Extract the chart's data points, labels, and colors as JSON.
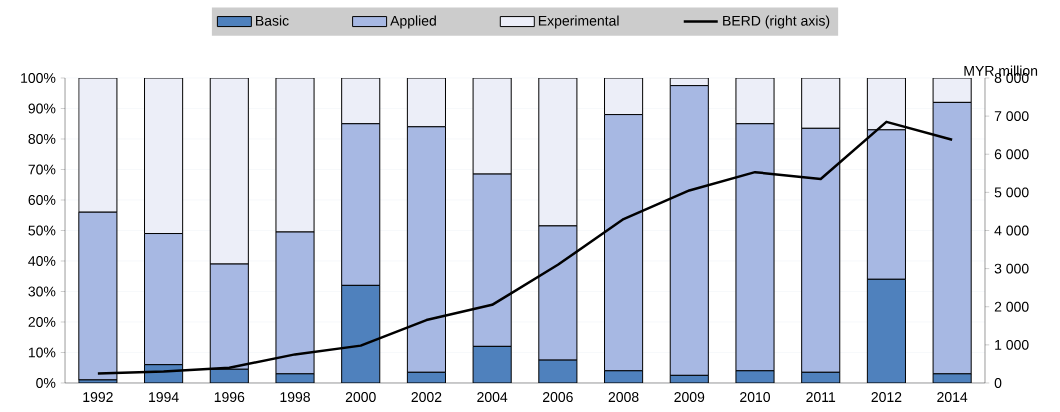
{
  "chart_data": {
    "type": "bar",
    "stacked": true,
    "y2label": "MYR million",
    "categories": [
      "1992",
      "1994",
      "1996",
      "1998",
      "2000",
      "2002",
      "2004",
      "2006",
      "2008",
      "2009",
      "2010",
      "2011",
      "2012",
      "2014"
    ],
    "series": [
      {
        "name": "Basic",
        "color": "#4f81bd",
        "values": [
          1,
          6,
          4.5,
          3,
          32,
          3.5,
          12,
          7.5,
          4,
          2.5,
          4,
          3.5,
          34,
          3
        ]
      },
      {
        "name": "Applied",
        "color": "#a7b8e3",
        "values": [
          55,
          43,
          34.5,
          46.5,
          53,
          80.5,
          56.5,
          44,
          84,
          95,
          81,
          80,
          49,
          89
        ]
      },
      {
        "name": "Experimental",
        "color": "#eceef8",
        "values": [
          44,
          51,
          61,
          50.5,
          15,
          16,
          31.5,
          48.5,
          12,
          2.5,
          15,
          16.5,
          17,
          8
        ]
      },
      {
        "name": "BERD (right axis)",
        "color": "#000000",
        "type": "line",
        "axis": "y2",
        "values": [
          250,
          300,
          400,
          750,
          980,
          1650,
          2050,
          3100,
          4300,
          5050,
          5530,
          5350,
          6850,
          6380
        ]
      }
    ],
    "ylim": [
      0,
      100
    ],
    "yticks": [
      {
        "value": 0,
        "label": "0%"
      },
      {
        "value": 10,
        "label": "10%"
      },
      {
        "value": 20,
        "label": "20%"
      },
      {
        "value": 30,
        "label": "30%"
      },
      {
        "value": 40,
        "label": "40%"
      },
      {
        "value": 50,
        "label": "50%"
      },
      {
        "value": 60,
        "label": "60%"
      },
      {
        "value": 70,
        "label": "70%"
      },
      {
        "value": 80,
        "label": "80%"
      },
      {
        "value": 90,
        "label": "90%"
      },
      {
        "value": 100,
        "label": "100%"
      }
    ],
    "y2lim": [
      0,
      8000
    ],
    "y2ticks": [
      0,
      {
        "value": 1000,
        "label": "1 000"
      },
      {
        "value": 2000,
        "label": "2 000"
      },
      {
        "value": 3000,
        "label": "3 000"
      },
      {
        "value": 4000,
        "label": "4 000"
      },
      {
        "value": 5000,
        "label": "5 000"
      },
      {
        "value": 6000,
        "label": "6 000"
      },
      {
        "value": 7000,
        "label": "7 000"
      },
      {
        "value": 8000,
        "label": "8 000"
      }
    ],
    "grid": "y",
    "legend": "top"
  }
}
